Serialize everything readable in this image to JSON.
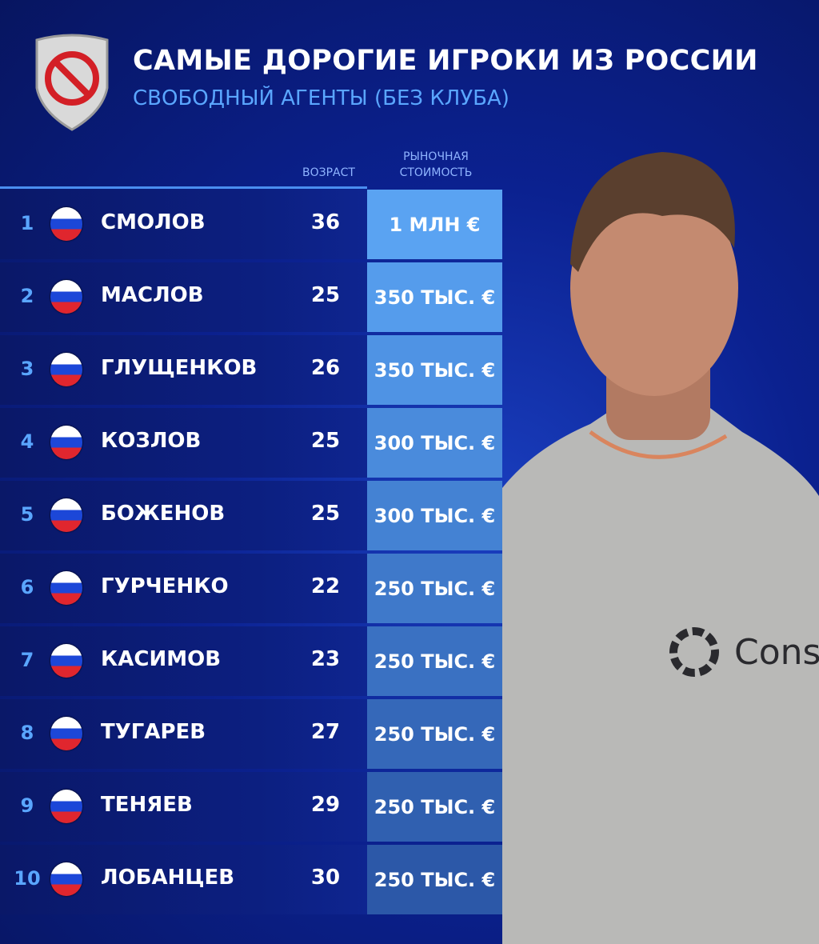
{
  "header": {
    "title": "САМЫЕ ДОРОГИЕ ИГРОКИ ИЗ РОССИИ",
    "subtitle": "СВОБОДНЫЙ АГЕНТЫ (БЕЗ КЛУБА)",
    "badge_icon": "prohibited-sign-shield-icon"
  },
  "columns": {
    "age": "ВОЗРАСТ",
    "value_line1": "РЫНОЧНАЯ",
    "value_line2": "СТОИМОСТЬ"
  },
  "rows": [
    {
      "rank": "1",
      "name": "СМОЛОВ",
      "age": "36",
      "value": "1 МЛН €",
      "color": "#5aa3f2"
    },
    {
      "rank": "2",
      "name": "МАСЛОВ",
      "age": "25",
      "value": "350 ТЫС. €",
      "color": "#559cec"
    },
    {
      "rank": "3",
      "name": "ГЛУЩЕНКОВ",
      "age": "26",
      "value": "350 ТЫС. €",
      "color": "#4f93e4"
    },
    {
      "rank": "4",
      "name": "КОЗЛОВ",
      "age": "25",
      "value": "300 ТЫС. €",
      "color": "#4a8bdc"
    },
    {
      "rank": "5",
      "name": "БОЖЕНОВ",
      "age": "25",
      "value": "300 ТЫС. €",
      "color": "#4482d3"
    },
    {
      "rank": "6",
      "name": "ГУРЧЕНКО",
      "age": "22",
      "value": "250 ТЫС. €",
      "color": "#3f79ca"
    },
    {
      "rank": "7",
      "name": "КАСИМОВ",
      "age": "23",
      "value": "250 ТЫС. €",
      "color": "#3a71c2"
    },
    {
      "rank": "8",
      "name": "ТУГАРЕВ",
      "age": "27",
      "value": "250 ТЫС. €",
      "color": "#3568b9"
    },
    {
      "rank": "9",
      "name": "ТЕНЯЕВ",
      "age": "29",
      "value": "250 ТЫС. €",
      "color": "#3060b0"
    },
    {
      "rank": "10",
      "name": "ЛОБАНЦЕВ",
      "age": "30",
      "value": "250 ТЫС. €",
      "color": "#2c58a8"
    }
  ],
  "flag_icon": "russia-flag-icon",
  "photo": {
    "shirt_text": "Const"
  }
}
